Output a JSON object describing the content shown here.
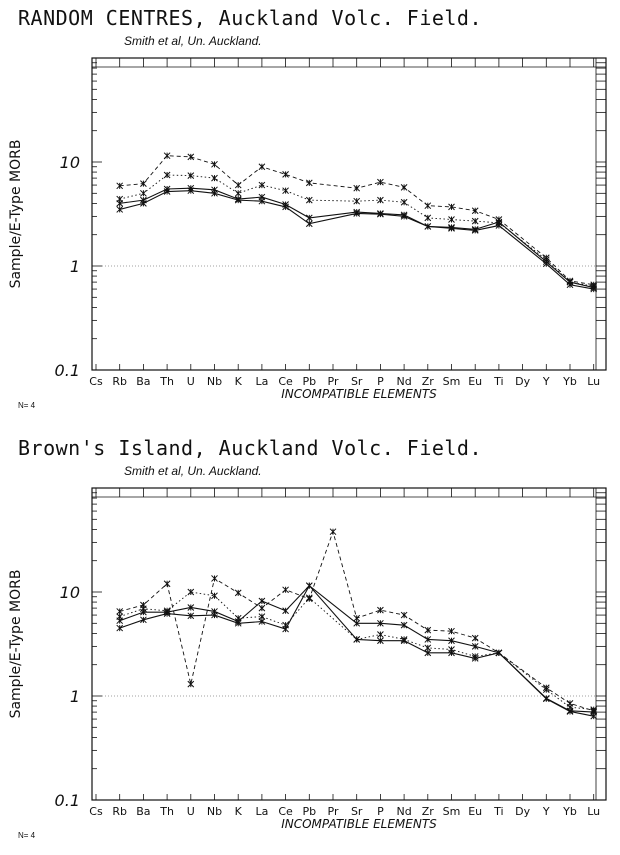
{
  "chart_data": [
    {
      "type": "line",
      "title": "RANDOM CENTRES, Auckland Volc. Field.",
      "subtitle": "Smith et al, Un. Auckland.",
      "xlabel": "INCOMPATIBLE ELEMENTS",
      "ylabel": "Sample/E-Type MORB",
      "yscale": "log",
      "ylim": [
        0.1,
        100
      ],
      "yticks": [
        {
          "value": 10,
          "label": "10"
        },
        {
          "value": 1,
          "label": "1"
        },
        {
          "value": 0.1,
          "label": "0.1"
        }
      ],
      "reference_line": 1,
      "note": "N= 4",
      "categories": [
        "Cs",
        "Rb",
        "Ba",
        "Th",
        "U",
        "Nb",
        "K",
        "La",
        "Ce",
        "Pb",
        "Pr",
        "Sr",
        "P",
        "Nd",
        "Zr",
        "Sm",
        "Eu",
        "Ti",
        "Dy",
        "Y",
        "Yb",
        "Lu"
      ],
      "series": [
        {
          "style": "dashed",
          "values": [
            null,
            5.9,
            6.2,
            11.5,
            11.2,
            9.5,
            6.0,
            9.0,
            7.6,
            6.3,
            null,
            5.6,
            6.4,
            5.7,
            3.8,
            3.7,
            3.4,
            2.8,
            null,
            1.2,
            0.72,
            0.66
          ]
        },
        {
          "style": "dotted",
          "values": [
            null,
            4.4,
            5.0,
            7.5,
            7.4,
            7.0,
            5.0,
            6.0,
            5.3,
            4.3,
            null,
            4.2,
            4.3,
            4.1,
            2.9,
            2.8,
            2.7,
            2.6,
            null,
            1.15,
            0.7,
            0.64
          ]
        },
        {
          "style": "solid",
          "values": [
            null,
            4.0,
            4.3,
            5.5,
            5.6,
            5.4,
            4.4,
            4.6,
            3.9,
            2.9,
            null,
            3.3,
            3.2,
            3.1,
            2.4,
            2.35,
            2.25,
            2.65,
            null,
            1.1,
            0.7,
            0.62
          ]
        },
        {
          "style": "solid",
          "values": [
            null,
            3.5,
            4.0,
            5.2,
            5.3,
            5.0,
            4.3,
            4.2,
            3.7,
            2.55,
            null,
            3.2,
            3.15,
            3.0,
            2.4,
            2.3,
            2.2,
            2.45,
            null,
            1.05,
            0.66,
            0.6
          ]
        }
      ]
    },
    {
      "type": "line",
      "title": "Brown's Island, Auckland Volc. Field.",
      "subtitle": "Smith et al, Un. Auckland.",
      "xlabel": "INCOMPATIBLE ELEMENTS",
      "ylabel": "Sample/E-Type MORB",
      "yscale": "log",
      "ylim": [
        0.1,
        100
      ],
      "yticks": [
        {
          "value": 10,
          "label": "10"
        },
        {
          "value": 1,
          "label": "1"
        },
        {
          "value": 0.1,
          "label": "0.1"
        }
      ],
      "reference_line": 1,
      "note": "N= 4",
      "categories": [
        "Cs",
        "Rb",
        "Ba",
        "Th",
        "U",
        "Nb",
        "K",
        "La",
        "Ce",
        "Pb",
        "Pr",
        "Sr",
        "P",
        "Nd",
        "Zr",
        "Sm",
        "Eu",
        "Ti",
        "Dy",
        "Y",
        "Yb",
        "Lu"
      ],
      "series": [
        {
          "style": "dashed",
          "values": [
            null,
            6.5,
            7.5,
            12.0,
            1.3,
            13.5,
            9.8,
            7.0,
            10.5,
            8.6,
            38.0,
            5.6,
            6.7,
            6.0,
            4.3,
            4.2,
            3.6,
            2.6,
            null,
            1.2,
            0.85,
            0.72
          ]
        },
        {
          "style": "dotted",
          "values": [
            null,
            5.8,
            6.9,
            6.6,
            10.0,
            9.2,
            5.6,
            5.8,
            4.8,
            8.8,
            null,
            3.5,
            3.9,
            3.5,
            2.9,
            2.8,
            2.4,
            2.6,
            null,
            1.15,
            0.78,
            0.74
          ]
        },
        {
          "style": "solid",
          "values": [
            null,
            5.3,
            6.4,
            6.4,
            7.1,
            6.5,
            5.2,
            8.2,
            6.6,
            11.5,
            null,
            5.0,
            5.0,
            4.8,
            3.5,
            3.4,
            3.0,
            2.6,
            null,
            0.95,
            0.72,
            0.7
          ]
        },
        {
          "style": "solid",
          "values": [
            null,
            4.5,
            5.4,
            6.2,
            5.9,
            6.0,
            5.0,
            5.2,
            4.4,
            11.5,
            null,
            3.5,
            3.4,
            3.4,
            2.6,
            2.6,
            2.3,
            2.6,
            null,
            0.94,
            0.71,
            0.64
          ]
        }
      ]
    }
  ]
}
